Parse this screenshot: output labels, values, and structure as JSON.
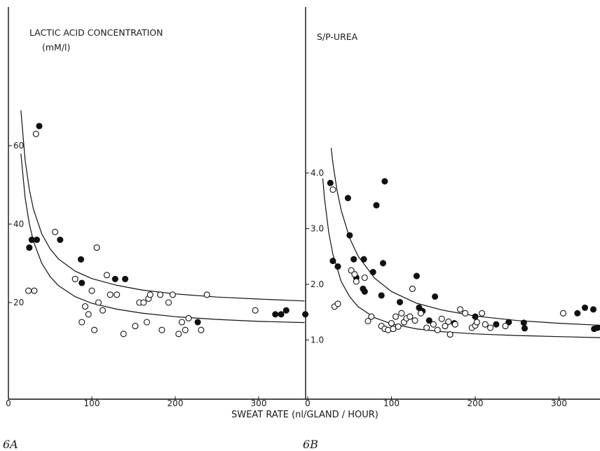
{
  "x_axis_label": "SWEAT RATE (nl/GLAND / HOUR)",
  "chart_data": [
    {
      "type": "scatter",
      "panel_label": "6A",
      "title": "LACTIC ACID CONCENTRATION",
      "subtitle": "(mM/l)",
      "xlabel": "SWEAT RATE (nl/GLAND / HOUR)",
      "ylabel": "",
      "xlim": [
        0,
        355
      ],
      "ylim": [
        0,
        80
      ],
      "x_ticks": [
        "0",
        "100",
        "200",
        "300"
      ],
      "y_ticks": [
        "20",
        "40",
        "60"
      ],
      "grid": false,
      "series": [
        {
          "marker": "filled",
          "points": [
            [
              25,
              34
            ],
            [
              28,
              36
            ],
            [
              34,
              36
            ],
            [
              37,
              65
            ],
            [
              62,
              36
            ],
            [
              87,
              31
            ],
            [
              88,
              25
            ],
            [
              128,
              26
            ],
            [
              140,
              26
            ],
            [
              227,
              15
            ],
            [
              320,
              17
            ],
            [
              327,
              17
            ],
            [
              333,
              18
            ],
            [
              356,
              17
            ]
          ]
        },
        {
          "marker": "open",
          "points": [
            [
              24,
              23
            ],
            [
              31,
              23
            ],
            [
              33,
              63
            ],
            [
              56,
              38
            ],
            [
              80,
              26
            ],
            [
              88,
              15
            ],
            [
              92,
              19
            ],
            [
              96,
              17
            ],
            [
              100,
              23
            ],
            [
              103,
              13
            ],
            [
              106,
              34
            ],
            [
              108,
              20
            ],
            [
              113,
              18
            ],
            [
              118,
              27
            ],
            [
              122,
              22
            ],
            [
              130,
              22
            ],
            [
              138,
              12
            ],
            [
              152,
              14
            ],
            [
              157,
              20
            ],
            [
              162,
              20
            ],
            [
              166,
              15
            ],
            [
              168,
              21
            ],
            [
              170,
              22
            ],
            [
              182,
              22
            ],
            [
              184,
              13
            ],
            [
              192,
              20
            ],
            [
              197,
              22
            ],
            [
              204,
              12
            ],
            [
              208,
              15
            ],
            [
              212,
              13
            ],
            [
              216,
              16
            ],
            [
              231,
              13
            ],
            [
              238,
              22
            ],
            [
              296,
              18
            ]
          ]
        }
      ],
      "curves": [
        {
          "x": [
            15,
            20,
            25,
            30,
            40,
            50,
            60,
            80,
            100,
            130,
            160,
            200,
            250,
            300,
            355
          ],
          "y": [
            69,
            56.4,
            48.9,
            43.8,
            37.5,
            33.7,
            31.1,
            28,
            26.1,
            24.4,
            23.2,
            22.2,
            21.4,
            20.9,
            20.4
          ]
        },
        {
          "x": [
            15,
            20,
            25,
            30,
            40,
            50,
            60,
            80,
            100,
            130,
            160,
            200,
            250,
            300,
            355
          ],
          "y": [
            58,
            46.8,
            40.1,
            35.6,
            30,
            26.6,
            24.3,
            21.5,
            19.8,
            18.3,
            17.3,
            16.4,
            15.7,
            15.2,
            14.9
          ]
        }
      ]
    },
    {
      "type": "scatter",
      "panel_label": "6B",
      "title": "S/P-UREA",
      "xlabel": "SWEAT RATE (nl/GLAND / HOUR)",
      "ylabel": "",
      "xlim": [
        0,
        355
      ],
      "ylim": [
        0.5,
        4.8
      ],
      "x_ticks": [
        "0",
        "100",
        "200",
        "300"
      ],
      "y_ticks": [
        "1.0",
        "2.0",
        "3.0",
        "4.0"
      ],
      "grid": false,
      "series": [
        {
          "marker": "filled",
          "points": [
            [
              27,
              3.82
            ],
            [
              30,
              2.42
            ],
            [
              36,
              2.32
            ],
            [
              48,
              3.55
            ],
            [
              50,
              2.88
            ],
            [
              55,
              2.45
            ],
            [
              58,
              2.12
            ],
            [
              66,
              1.92
            ],
            [
              67,
              2.45
            ],
            [
              68,
              1.87
            ],
            [
              78,
              2.22
            ],
            [
              82,
              3.42
            ],
            [
              88,
              1.8
            ],
            [
              92,
              3.85
            ],
            [
              90,
              2.38
            ],
            [
              110,
              1.68
            ],
            [
              130,
              2.15
            ],
            [
              133,
              1.58
            ],
            [
              137,
              1.52
            ],
            [
              145,
              1.35
            ],
            [
              152,
              1.78
            ],
            [
              175,
              1.3
            ],
            [
              200,
              1.42
            ],
            [
              225,
              1.28
            ],
            [
              240,
              1.32
            ],
            [
              258,
              1.31
            ],
            [
              259,
              1.21
            ],
            [
              322,
              1.48
            ],
            [
              331,
              1.58
            ],
            [
              341,
              1.55
            ],
            [
              342,
              1.2
            ],
            [
              346,
              1.22
            ],
            [
              353,
              1.12
            ],
            [
              355,
              1.46
            ]
          ]
        },
        {
          "marker": "open",
          "points": [
            [
              30,
              3.7
            ],
            [
              32,
              1.6
            ],
            [
              36,
              1.65
            ],
            [
              52,
              2.25
            ],
            [
              56,
              2.18
            ],
            [
              58,
              2.05
            ],
            [
              68,
              2.12
            ],
            [
              72,
              1.34
            ],
            [
              76,
              1.42
            ],
            [
              88,
              1.25
            ],
            [
              92,
              1.2
            ],
            [
              96,
              1.18
            ],
            [
              100,
              1.3
            ],
            [
              102,
              1.2
            ],
            [
              105,
              1.42
            ],
            [
              108,
              1.24
            ],
            [
              112,
              1.48
            ],
            [
              115,
              1.32
            ],
            [
              118,
              1.39
            ],
            [
              122,
              1.42
            ],
            [
              125,
              1.92
            ],
            [
              128,
              1.35
            ],
            [
              135,
              1.48
            ],
            [
              142,
              1.22
            ],
            [
              150,
              1.28
            ],
            [
              155,
              1.18
            ],
            [
              160,
              1.38
            ],
            [
              164,
              1.25
            ],
            [
              168,
              1.33
            ],
            [
              170,
              1.1
            ],
            [
              176,
              1.28
            ],
            [
              182,
              1.55
            ],
            [
              188,
              1.48
            ],
            [
              196,
              1.22
            ],
            [
              200,
              1.26
            ],
            [
              202,
              1.32
            ],
            [
              208,
              1.48
            ],
            [
              212,
              1.28
            ],
            [
              218,
              1.22
            ],
            [
              236,
              1.25
            ],
            [
              305,
              1.48
            ]
          ]
        }
      ],
      "curves": [
        {
          "x": [
            28,
            30,
            35,
            40,
            50,
            60,
            80,
            100,
            130,
            160,
            200,
            250,
            300,
            355
          ],
          "y": [
            4.45,
            4.18,
            3.69,
            3.33,
            2.83,
            2.51,
            2.11,
            1.87,
            1.66,
            1.54,
            1.43,
            1.35,
            1.3,
            1.26
          ]
        },
        {
          "x": [
            18,
            20,
            25,
            30,
            40,
            50,
            60,
            80,
            100,
            130,
            160,
            200,
            250,
            300,
            355
          ],
          "y": [
            3.9,
            3.55,
            2.94,
            2.54,
            2.05,
            1.78,
            1.6,
            1.4,
            1.29,
            1.2,
            1.15,
            1.11,
            1.08,
            1.06,
            1.04
          ]
        }
      ]
    }
  ]
}
